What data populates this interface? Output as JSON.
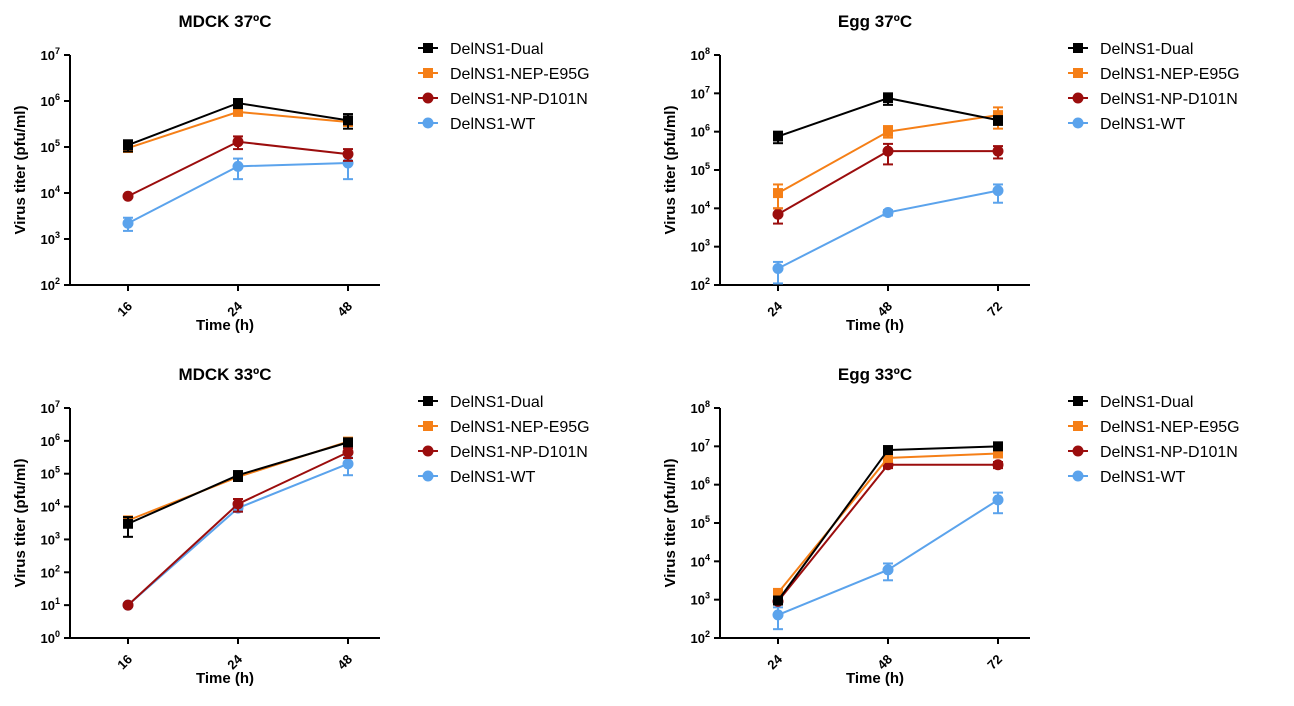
{
  "chart_data": [
    {
      "type": "line",
      "title": "MDCK 37ºC",
      "xlabel": "Time (h)",
      "ylabel": "Virus titer (pfu/ml)",
      "yscale": "log",
      "ylim_exp": [
        2,
        7
      ],
      "x": [
        "16",
        "24",
        "48"
      ],
      "legend_position": "right",
      "series": [
        {
          "name": "DelNS1-Dual",
          "color": "#000000",
          "marker": "square",
          "values": [
            110000,
            900000,
            380000
          ],
          "err_low": [
            80000,
            700000,
            250000
          ],
          "err_high": [
            140000,
            1100000,
            520000
          ]
        },
        {
          "name": "DelNS1-NEP-E95G",
          "color": "#f57f17",
          "marker": "square",
          "values": [
            95000,
            580000,
            350000
          ],
          "err_low": [
            85000,
            500000,
            300000
          ],
          "err_high": [
            105000,
            660000,
            400000
          ]
        },
        {
          "name": "DelNS1-NP-D101N",
          "color": "#9b0d0d",
          "marker": "circle",
          "values": [
            8500,
            130000,
            70000
          ],
          "err_low": [
            8000,
            90000,
            50000
          ],
          "err_high": [
            9000,
            170000,
            90000
          ]
        },
        {
          "name": "DelNS1-WT",
          "color": "#5ba3ec",
          "marker": "circle",
          "values": [
            2200,
            38000,
            45000
          ],
          "err_low": [
            1500,
            20000,
            20000
          ],
          "err_high": [
            2900,
            56000,
            70000
          ]
        }
      ]
    },
    {
      "type": "line",
      "title": "Egg 37ºC",
      "xlabel": "Time (h)",
      "ylabel": "Virus titer (pfu/ml)",
      "yscale": "log",
      "ylim_exp": [
        2,
        8
      ],
      "x": [
        "24",
        "48",
        "72"
      ],
      "legend_position": "right",
      "series": [
        {
          "name": "DelNS1-Dual",
          "color": "#000000",
          "marker": "square",
          "values": [
            750000,
            7500000,
            2000000
          ],
          "err_low": [
            500000,
            5000000,
            1500000
          ],
          "err_high": [
            1000000,
            10000000,
            2500000
          ]
        },
        {
          "name": "DelNS1-NEP-E95G",
          "color": "#f57f17",
          "marker": "square",
          "values": [
            25000,
            1000000,
            2700000
          ],
          "err_low": [
            10000,
            700000,
            1200000
          ],
          "err_high": [
            42000,
            1400000,
            4300000
          ]
        },
        {
          "name": "DelNS1-NP-D101N",
          "color": "#9b0d0d",
          "marker": "circle",
          "values": [
            7000,
            310000,
            310000
          ],
          "err_low": [
            4000,
            140000,
            200000
          ],
          "err_high": [
            10000,
            480000,
            420000
          ]
        },
        {
          "name": "DelNS1-WT",
          "color": "#5ba3ec",
          "marker": "circle",
          "values": [
            270,
            7800,
            29000
          ],
          "err_low": [
            110,
            6500,
            14000
          ],
          "err_high": [
            400,
            9000,
            42000
          ]
        }
      ]
    },
    {
      "type": "line",
      "title": "MDCK 33ºC",
      "xlabel": "Time (h)",
      "ylabel": "Virus titer (pfu/ml)",
      "yscale": "log",
      "ylim_exp": [
        0,
        7
      ],
      "x": [
        "16",
        "24",
        "48"
      ],
      "legend_position": "right",
      "series": [
        {
          "name": "DelNS1-Dual",
          "color": "#000000",
          "marker": "square",
          "values": [
            3000,
            90000,
            900000
          ],
          "err_low": [
            1200,
            60000,
            700000
          ],
          "err_high": [
            4800,
            120000,
            1100000
          ]
        },
        {
          "name": "DelNS1-NEP-E95G",
          "color": "#f57f17",
          "marker": "square",
          "values": [
            3800,
            80000,
            950000
          ],
          "err_low": [
            3000,
            60000,
            850000
          ],
          "err_high": [
            4600,
            100000,
            1050000
          ]
        },
        {
          "name": "DelNS1-NP-D101N",
          "color": "#9b0d0d",
          "marker": "circle",
          "values": [
            10,
            12000,
            450000
          ],
          "err_low": [
            9,
            7000,
            300000
          ],
          "err_high": [
            11,
            17000,
            600000
          ]
        },
        {
          "name": "DelNS1-WT",
          "color": "#5ba3ec",
          "marker": "circle",
          "values": [
            10,
            9000,
            200000
          ],
          "err_low": [
            9,
            7000,
            90000
          ],
          "err_high": [
            11,
            11000,
            310000
          ]
        }
      ]
    },
    {
      "type": "line",
      "title": "Egg 33ºC",
      "xlabel": "Time (h)",
      "ylabel": "Virus titer (pfu/ml)",
      "yscale": "log",
      "ylim_exp": [
        2,
        8
      ],
      "x": [
        "24",
        "48",
        "72"
      ],
      "legend_position": "right",
      "series": [
        {
          "name": "DelNS1-Dual",
          "color": "#000000",
          "marker": "square",
          "values": [
            950,
            8000000,
            10000000
          ],
          "err_low": [
            800,
            7000000,
            9000000
          ],
          "err_high": [
            1100,
            9000000,
            11000000
          ]
        },
        {
          "name": "DelNS1-NEP-E95G",
          "color": "#f57f17",
          "marker": "square",
          "values": [
            1500,
            5000000,
            6500000
          ],
          "err_low": [
            1300,
            4000000,
            5500000
          ],
          "err_high": [
            1700,
            6000000,
            7500000
          ]
        },
        {
          "name": "DelNS1-NP-D101N",
          "color": "#9b0d0d",
          "marker": "circle",
          "values": [
            900,
            3300000,
            3300000
          ],
          "err_low": [
            800,
            2700000,
            2700000
          ],
          "err_high": [
            1000,
            3900000,
            3900000
          ]
        },
        {
          "name": "DelNS1-WT",
          "color": "#5ba3ec",
          "marker": "circle",
          "values": [
            400,
            6000,
            400000
          ],
          "err_low": [
            170,
            3200,
            180000
          ],
          "err_high": [
            630,
            8800,
            620000
          ]
        }
      ]
    }
  ]
}
